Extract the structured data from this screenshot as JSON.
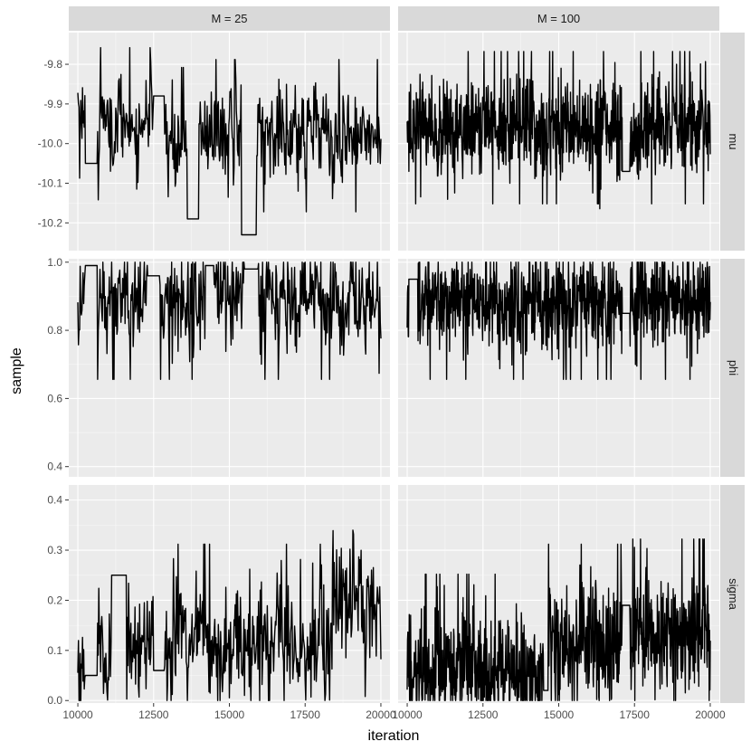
{
  "chart_data": {
    "type": "line",
    "facet_columns": [
      "M = 25",
      "M = 100"
    ],
    "facet_rows": [
      "mu",
      "phi",
      "sigma"
    ],
    "xlabel": "iteration",
    "ylabel": "sample",
    "xlim": [
      9700,
      20300
    ],
    "x_ticks": [
      10000,
      12500,
      15000,
      17500,
      20000
    ],
    "x_tick_labels": [
      "10000",
      "12500",
      "15000",
      "17500",
      "20000"
    ],
    "rows": {
      "mu": {
        "ylim": [
          -10.27,
          -9.72
        ],
        "ticks": [
          -10.2,
          -10.1,
          -10.0,
          -9.9,
          -9.8
        ],
        "tick_labels": [
          "-10.2",
          "-10.1",
          "-10.0",
          "-9.9",
          "-9.8"
        ],
        "center": -9.97,
        "spread": 0.06,
        "low": -10.26,
        "high": -9.73
      },
      "phi": {
        "ylim": [
          0.37,
          1.01
        ],
        "ticks": [
          0.4,
          0.6,
          0.8,
          1.0
        ],
        "tick_labels": [
          "0.4",
          "0.6",
          "0.8",
          "1.0"
        ],
        "center": 0.89,
        "spread": 0.07,
        "low": 0.4,
        "high": 1.0
      },
      "sigma": {
        "ylim": [
          -0.005,
          0.43
        ],
        "ticks": [
          0.0,
          0.1,
          0.2,
          0.3,
          0.4
        ],
        "tick_labels": [
          "0.0",
          "0.1",
          "0.2",
          "0.3",
          "0.4"
        ],
        "center": 0.12,
        "spread": 0.06,
        "low": 0.0,
        "high": 0.42
      }
    },
    "series_segments": {
      "M = 25": {
        "mu": [
          [
            10000,
            -9.93
          ],
          [
            10250,
            -10.05
          ],
          [
            10650,
            -9.95
          ],
          [
            12500,
            -9.88
          ],
          [
            12850,
            -10.0
          ],
          [
            13600,
            -10.19
          ],
          [
            14000,
            -9.98
          ],
          [
            15400,
            -10.23
          ],
          [
            15900,
            -9.98
          ],
          [
            20000,
            -10.0
          ]
        ],
        "phi": [
          [
            10000,
            0.87
          ],
          [
            10250,
            0.99
          ],
          [
            10650,
            0.88
          ],
          [
            12300,
            0.96
          ],
          [
            12700,
            0.88
          ],
          [
            14200,
            0.99
          ],
          [
            14500,
            0.92
          ],
          [
            15500,
            0.98
          ],
          [
            15950,
            0.88
          ],
          [
            20000,
            0.86
          ]
        ],
        "sigma": [
          [
            10000,
            0.1
          ],
          [
            10250,
            0.05
          ],
          [
            10650,
            0.12
          ],
          [
            11100,
            0.25
          ],
          [
            11600,
            0.1
          ],
          [
            12500,
            0.06
          ],
          [
            12850,
            0.12
          ],
          [
            14500,
            0.1
          ],
          [
            15400,
            0.07
          ],
          [
            15950,
            0.12
          ],
          [
            18400,
            0.2
          ],
          [
            20000,
            0.1
          ]
        ]
      },
      "M = 100": {
        "mu": [
          [
            10000,
            -9.96
          ],
          [
            17100,
            -10.07
          ],
          [
            17350,
            -9.96
          ],
          [
            20000,
            -9.96
          ]
        ],
        "phi": [
          [
            10000,
            0.86
          ],
          [
            10050,
            0.95
          ],
          [
            10350,
            0.88
          ],
          [
            17100,
            0.85
          ],
          [
            17350,
            0.88
          ],
          [
            20000,
            0.86
          ]
        ],
        "sigma": [
          [
            10000,
            0.06
          ],
          [
            14500,
            0.02
          ],
          [
            14650,
            0.12
          ],
          [
            17100,
            0.19
          ],
          [
            17350,
            0.13
          ],
          [
            20000,
            0.1
          ]
        ]
      }
    },
    "colors": {
      "panel_bg": "#ebebeb",
      "grid_major": "#ffffff",
      "grid_minor": "#f7f7f7",
      "strip_bg": "#d9d9d9",
      "line": "#000000",
      "tick_text": "#4d4d4d",
      "strip_text": "#1a1a1a"
    },
    "grid": true,
    "legend": "none"
  }
}
